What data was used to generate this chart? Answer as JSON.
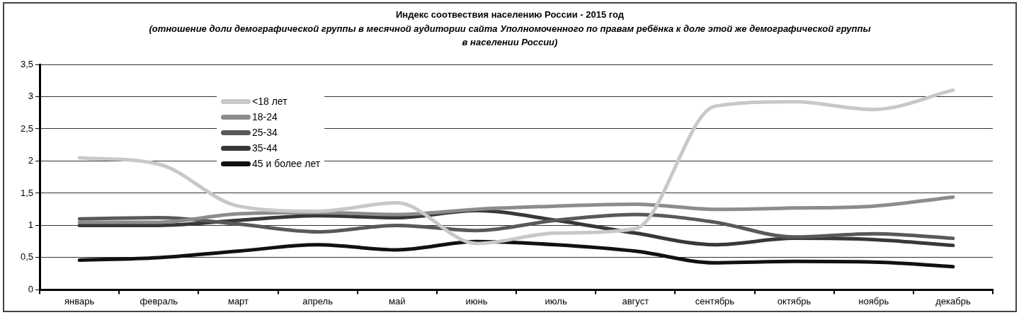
{
  "chart_data": {
    "type": "line",
    "title": "Индекс соотвествия населению России - 2015 год",
    "subtitle": "(отношение доли демографической группы в месячной аудитории сайта Уполномоченного по правам ребёнка к доле этой же демографической группы в населении России)",
    "categories": [
      "январь",
      "февраль",
      "март",
      "апрель",
      "май",
      "июнь",
      "июль",
      "август",
      "сентябрь",
      "октябрь",
      "ноябрь",
      "декабрь"
    ],
    "series": [
      {
        "name": "<18 лет",
        "color": "#c8c8c8",
        "values": [
          2.05,
          1.95,
          1.3,
          1.22,
          1.35,
          0.72,
          0.88,
          0.95,
          2.85,
          2.92,
          2.8,
          3.1
        ]
      },
      {
        "name": "18-24",
        "color": "#8c8c8c",
        "values": [
          1.05,
          1.05,
          1.18,
          1.2,
          1.17,
          1.25,
          1.3,
          1.33,
          1.25,
          1.27,
          1.3,
          1.44
        ]
      },
      {
        "name": "25-34",
        "color": "#595959",
        "values": [
          1.1,
          1.12,
          1.02,
          0.9,
          1.0,
          0.92,
          1.08,
          1.17,
          1.05,
          0.82,
          0.87,
          0.8
        ]
      },
      {
        "name": "35-44",
        "color": "#383838",
        "values": [
          1.0,
          1.0,
          1.08,
          1.15,
          1.12,
          1.23,
          1.08,
          0.88,
          0.7,
          0.8,
          0.78,
          0.69
        ]
      },
      {
        "name": "45 и более лет",
        "color": "#111111",
        "values": [
          0.46,
          0.5,
          0.6,
          0.7,
          0.62,
          0.75,
          0.7,
          0.6,
          0.42,
          0.44,
          0.43,
          0.36
        ]
      }
    ],
    "ylim": [
      0,
      3.5
    ],
    "yticks": [
      0,
      {
        "value": 0.5,
        "label": "0,5"
      },
      1,
      {
        "value": 1.5,
        "label": "1,5"
      },
      2,
      {
        "value": 2.5,
        "label": "2,5"
      },
      3,
      {
        "value": 3.5,
        "label": "3,5"
      }
    ],
    "grid": "y",
    "legend": "top left",
    "marker": "none",
    "line_style": "solid"
  }
}
